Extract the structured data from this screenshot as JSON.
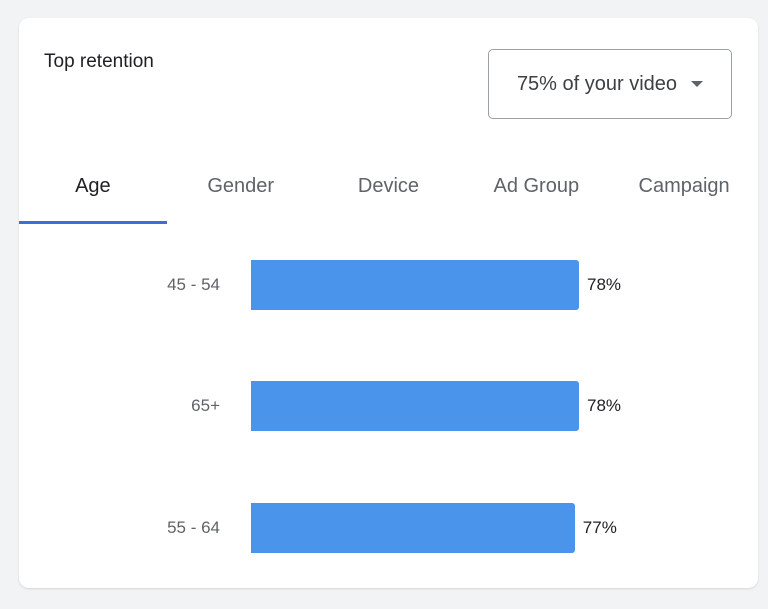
{
  "card": {
    "title": "Top retention"
  },
  "dropdown": {
    "selected": "75% of your video",
    "icon": "caret-down-icon"
  },
  "tabs": [
    {
      "label": "Age",
      "active": true
    },
    {
      "label": "Gender",
      "active": false
    },
    {
      "label": "Device",
      "active": false
    },
    {
      "label": "Ad Group",
      "active": false
    },
    {
      "label": "Campaign",
      "active": false
    }
  ],
  "chart_data": {
    "type": "bar",
    "orientation": "horizontal",
    "categories": [
      "45 - 54",
      "65+",
      "55 - 64"
    ],
    "values": [
      78,
      78,
      77
    ],
    "value_labels": [
      "78%",
      "78%",
      "77%"
    ],
    "unit": "%",
    "xlim": [
      0,
      100
    ],
    "color": "#4a94eb",
    "grid": false
  }
}
